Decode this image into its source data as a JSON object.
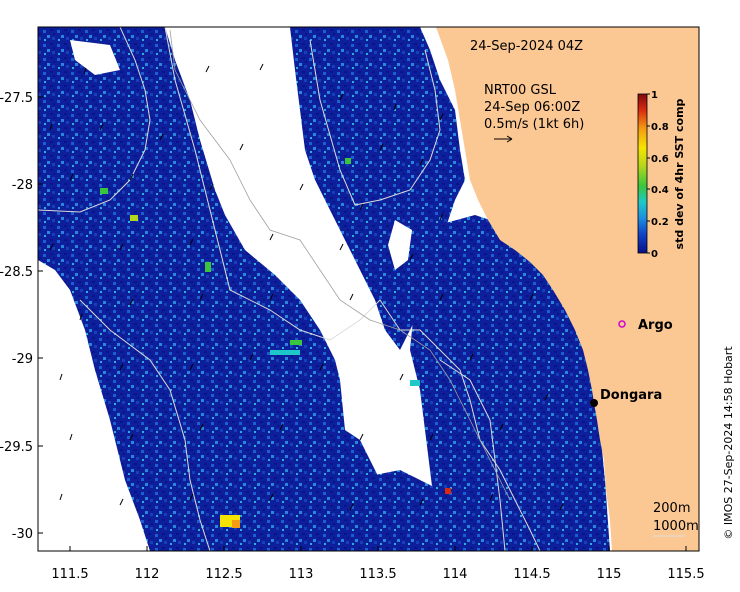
{
  "map": {
    "time_label": "24-Sep-2024 04Z",
    "current_title": "NRT00 GSL",
    "current_time": "24-Sep 06:00Z",
    "arrow_scale": "0.5m/s (1kt 6h)",
    "credit": "© IMOS 27-Sep-2024 14:58 Hobart",
    "x_ticks": [
      "111.5",
      "112",
      "112.5",
      "113",
      "113.5",
      "114",
      "114.5",
      "115",
      "115.5"
    ],
    "y_ticks": [
      "-27.5",
      "-28",
      "-28.5",
      "-29",
      "-29.5",
      "-30"
    ],
    "markers": {
      "argo_label": "Argo",
      "town_label": "Dongara"
    },
    "isobaths": [
      "200m",
      "1000m"
    ],
    "colors": {
      "land": "#fbc792",
      "low": "#0a1a8c",
      "mid": "#1e8fd6",
      "high": "#f5e400"
    }
  },
  "colorbar": {
    "title": "std dev of 4hr SST comp",
    "ticks": [
      "1",
      "0.8",
      "0.6",
      "0.4",
      "0.2",
      "0"
    ],
    "stops": [
      "#08108a",
      "#1244c8",
      "#1d8fe0",
      "#1fc8c8",
      "#39c63d",
      "#b6d61a",
      "#f7e400",
      "#f59d12",
      "#d92a10",
      "#7d0c0c"
    ]
  }
}
